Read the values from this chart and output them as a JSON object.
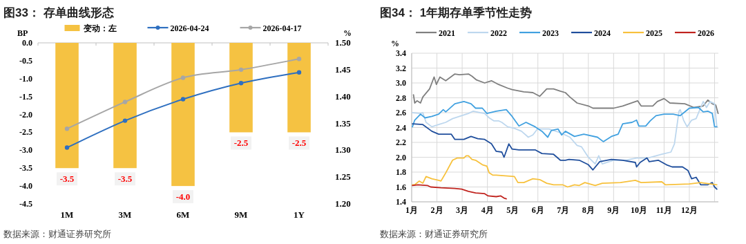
{
  "chart_data": [
    {
      "type": "bar",
      "title": "图33：  存单曲线形态",
      "ylabel": "BP",
      "y2label": "%",
      "categories": [
        "1M",
        "3M",
        "6M",
        "9M",
        "1Y"
      ],
      "series": [
        {
          "name": "变动：左",
          "color": "#f5c242",
          "values": [
            -3.5,
            -3.5,
            -4.0,
            -2.5,
            -2.5
          ],
          "value_labels": [
            "-3.5",
            "-3.5",
            "-4.0",
            "-2.5",
            "-2.5"
          ]
        },
        {
          "type": "line",
          "name": "2026-04-24",
          "color": "#2e6fc0",
          "axis": "y2",
          "marker": "circle",
          "values": [
            1.305,
            1.355,
            1.395,
            1.425,
            1.445
          ]
        },
        {
          "type": "line",
          "name": "2026-04-17",
          "color": "#a6a6a6",
          "axis": "y2",
          "marker": "circle",
          "values": [
            1.34,
            1.39,
            1.435,
            1.45,
            1.47
          ]
        }
      ],
      "ylim": [
        -4.5,
        0
      ],
      "yticks": [
        {
          "value": -4.5,
          "label": "-4.5"
        },
        {
          "value": -4,
          "label": "-4.0"
        },
        {
          "value": -3.5,
          "label": "-3.5"
        },
        {
          "value": -3,
          "label": "-3.0"
        },
        {
          "value": -2.5,
          "label": "-2.5"
        },
        {
          "value": -2,
          "label": "-2.0"
        },
        {
          "value": -1.5,
          "label": "-1.5"
        },
        {
          "value": -1,
          "label": "-1.0"
        },
        {
          "value": -0.5,
          "label": "-0.5"
        },
        {
          "value": 0,
          "label": "0.0"
        }
      ],
      "y2lim": [
        1.2,
        1.5
      ],
      "y2ticks": [
        {
          "value": 1.2,
          "label": "1.20"
        },
        {
          "value": 1.25,
          "label": "1.25"
        },
        {
          "value": 1.3,
          "label": "1.30"
        },
        {
          "value": 1.35,
          "label": "1.35"
        },
        {
          "value": 1.4,
          "label": "1.40"
        },
        {
          "value": 1.45,
          "label": "1.45"
        },
        {
          "value": 1.5,
          "label": "1.50"
        }
      ],
      "legend": "top",
      "annotations": [
        "数据来源：财通证券研究所"
      ]
    },
    {
      "type": "line",
      "title": "图34：  1年期存单季节性走势",
      "ylabel": "%",
      "series": [
        {
          "name": "2021",
          "color": "#7f7f7f",
          "x": [
            1.07,
            1.12,
            1.21,
            1.35,
            1.44,
            1.71,
            1.8,
            1.89,
            1.98,
            2.12,
            2.35,
            2.71,
            2.89,
            3.25,
            3.39,
            3.57,
            3.89,
            4.16,
            4.44,
            4.8,
            4.98,
            5.44,
            5.8,
            6.07,
            6.35,
            6.62,
            6.89,
            7.09,
            7.27,
            7.55,
            8.0,
            8.18,
            8.55,
            9.0,
            9.36,
            9.95,
            10.09,
            10.55,
            10.73,
            11.0,
            11.23,
            11.82,
            12.18,
            12.55,
            12.73,
            12.91,
            13.05,
            13.14
          ],
          "values": [
            2.84,
            2.73,
            2.76,
            2.73,
            2.81,
            2.92,
            3.0,
            3.08,
            2.98,
            3.08,
            3.03,
            3.12,
            3.11,
            3.12,
            3.09,
            3.04,
            3.0,
            3.03,
            2.98,
            2.93,
            2.91,
            2.88,
            2.87,
            2.82,
            2.92,
            2.92,
            2.89,
            2.87,
            2.81,
            2.73,
            2.69,
            2.66,
            2.66,
            2.66,
            2.69,
            2.76,
            2.69,
            2.69,
            2.75,
            2.79,
            2.73,
            2.72,
            2.67,
            2.69,
            2.77,
            2.72,
            2.7,
            2.59
          ]
        },
        {
          "name": "2022",
          "color": "#bdd7ee",
          "x": [
            1.03,
            1.35,
            1.44,
            1.57,
            1.8,
            2.07,
            2.35,
            2.62,
            2.89,
            3.25,
            3.44,
            3.71,
            3.89,
            4.07,
            4.25,
            4.44,
            4.57,
            4.8,
            5.07,
            5.35,
            5.62,
            5.8,
            5.98,
            6.44,
            6.89,
            7.27,
            7.55,
            7.73,
            8.0,
            8.27,
            8.41,
            8.55,
            9.0,
            9.45,
            9.91,
            10.36,
            10.91,
            11.27,
            11.41,
            11.59,
            11.64,
            11.77,
            11.91,
            12.09,
            12.27,
            12.45,
            12.55,
            12.68,
            12.82,
            13.0,
            13.09
          ],
          "values": [
            2.6,
            2.59,
            2.6,
            2.47,
            2.41,
            2.44,
            2.47,
            2.52,
            2.55,
            2.59,
            2.62,
            2.6,
            2.59,
            2.53,
            2.49,
            2.49,
            2.47,
            2.41,
            2.39,
            2.35,
            2.27,
            2.3,
            2.38,
            2.38,
            2.33,
            2.27,
            2.16,
            2.14,
            2.0,
            1.91,
            2.02,
            1.91,
            1.96,
            1.96,
            1.99,
            1.99,
            2.04,
            2.07,
            2.18,
            2.62,
            2.64,
            2.5,
            2.41,
            2.5,
            2.52,
            2.67,
            2.75,
            2.67,
            2.75,
            2.72,
            2.41
          ]
        },
        {
          "name": "2023",
          "color": "#41a1e0",
          "x": [
            1.03,
            1.12,
            1.35,
            1.53,
            1.8,
            2.07,
            2.25,
            2.35,
            2.71,
            3.07,
            3.35,
            3.53,
            3.8,
            3.98,
            4.35,
            4.75,
            4.98,
            5.25,
            5.53,
            5.89,
            6.16,
            6.39,
            6.53,
            6.8,
            6.94,
            7.09,
            7.45,
            7.82,
            8.36,
            8.59,
            8.91,
            9.18,
            9.36,
            9.73,
            9.91,
            10.0,
            10.27,
            10.45,
            10.68,
            11.0,
            11.36,
            11.64,
            12.0,
            12.36,
            12.55,
            12.73,
            12.91,
            13.0,
            13.09
          ],
          "values": [
            2.41,
            2.5,
            2.58,
            2.53,
            2.55,
            2.58,
            2.64,
            2.61,
            2.72,
            2.75,
            2.72,
            2.66,
            2.66,
            2.59,
            2.62,
            2.64,
            2.55,
            2.42,
            2.47,
            2.41,
            2.35,
            2.27,
            2.36,
            2.38,
            2.3,
            2.35,
            2.28,
            2.31,
            2.27,
            2.21,
            2.28,
            2.31,
            2.45,
            2.47,
            2.5,
            2.42,
            2.42,
            2.49,
            2.56,
            2.58,
            2.58,
            2.56,
            2.66,
            2.67,
            2.61,
            2.62,
            2.59,
            2.41,
            2.41
          ]
        },
        {
          "name": "2024",
          "color": "#1f4e9c",
          "x": [
            1.03,
            1.44,
            1.8,
            2.07,
            2.57,
            2.71,
            3.07,
            3.35,
            3.62,
            3.89,
            4.16,
            4.35,
            4.57,
            4.66,
            4.85,
            4.98,
            5.25,
            5.89,
            6.16,
            6.62,
            6.89,
            7.09,
            7.23,
            7.64,
            8.0,
            8.18,
            8.45,
            8.91,
            9.36,
            9.86,
            9.91,
            10.05,
            10.32,
            10.41,
            10.77,
            11.09,
            11.32,
            11.73,
            11.95,
            12.09,
            12.27,
            12.45,
            12.73,
            12.91,
            13.0,
            13.09
          ],
          "values": [
            2.45,
            2.44,
            2.35,
            2.31,
            2.31,
            2.24,
            2.24,
            2.28,
            2.25,
            2.24,
            2.18,
            2.08,
            2.07,
            2.0,
            2.18,
            2.11,
            2.1,
            2.1,
            2.05,
            2.04,
            1.96,
            1.96,
            1.97,
            1.96,
            1.9,
            1.83,
            1.94,
            1.97,
            1.96,
            1.93,
            1.87,
            1.93,
            1.99,
            1.94,
            1.96,
            1.9,
            1.87,
            1.87,
            1.82,
            1.71,
            1.73,
            1.63,
            1.63,
            1.66,
            1.6,
            1.57
          ]
        },
        {
          "name": "2025",
          "color": "#f7c13c",
          "x": [
            1.03,
            1.12,
            1.3,
            1.44,
            1.57,
            1.8,
            2.07,
            2.16,
            2.35,
            2.62,
            2.8,
            3.07,
            3.16,
            3.25,
            3.39,
            3.53,
            3.8,
            3.98,
            4.07,
            4.21,
            4.35,
            5.07,
            5.21,
            5.44,
            5.8,
            6.07,
            6.35,
            6.62,
            6.98,
            7.18,
            7.45,
            7.64,
            7.86,
            8.27,
            8.55,
            9.27,
            9.86,
            10.09,
            10.91,
            11.05,
            12.0,
            12.45,
            13.09
          ],
          "values": [
            1.63,
            1.63,
            1.68,
            1.65,
            1.74,
            1.71,
            1.69,
            1.68,
            1.79,
            1.96,
            1.99,
            1.99,
            2.02,
            2.02,
            1.97,
            1.96,
            1.9,
            1.88,
            1.79,
            1.76,
            1.76,
            1.74,
            1.66,
            1.66,
            1.71,
            1.7,
            1.65,
            1.63,
            1.63,
            1.6,
            1.63,
            1.62,
            1.66,
            1.62,
            1.65,
            1.66,
            1.69,
            1.66,
            1.67,
            1.63,
            1.64,
            1.66,
            1.63
          ]
        },
        {
          "name": "2026",
          "color": "#c0231e",
          "x": [
            1.03,
            1.25,
            1.62,
            1.75,
            2.16,
            2.71,
            2.98,
            3.25,
            3.53,
            3.89,
            4.03,
            4.35,
            4.53,
            4.66,
            4.75
          ],
          "values": [
            1.62,
            1.63,
            1.62,
            1.6,
            1.59,
            1.58,
            1.57,
            1.54,
            1.52,
            1.51,
            1.48,
            1.47,
            1.48,
            1.45,
            1.44
          ]
        }
      ],
      "xlim": [
        1,
        13.15
      ],
      "xticks": [
        {
          "value": 1,
          "label": "1月"
        },
        {
          "value": 2,
          "label": "2月"
        },
        {
          "value": 3,
          "label": "3月"
        },
        {
          "value": 4,
          "label": "4月"
        },
        {
          "value": 5,
          "label": "5月"
        },
        {
          "value": 6,
          "label": "6月"
        },
        {
          "value": 7,
          "label": "7月"
        },
        {
          "value": 8,
          "label": "8月"
        },
        {
          "value": 9,
          "label": "9月"
        },
        {
          "value": 10,
          "label": "10月"
        },
        {
          "value": 11,
          "label": "11月"
        },
        {
          "value": 12,
          "label": "12月"
        },
        {
          "value": 13,
          "label": null
        }
      ],
      "ylim": [
        1.4,
        3.4
      ],
      "yticks": [
        1.4,
        1.6,
        1.8,
        {
          "value": 2,
          "label": "2.0"
        },
        2.2,
        2.4,
        2.6,
        2.8,
        {
          "value": 3,
          "label": "3.0"
        },
        3.2,
        3.4
      ],
      "grid": true,
      "legend": "top",
      "annotations": [
        "数据来源：财通证券研究所"
      ]
    }
  ]
}
